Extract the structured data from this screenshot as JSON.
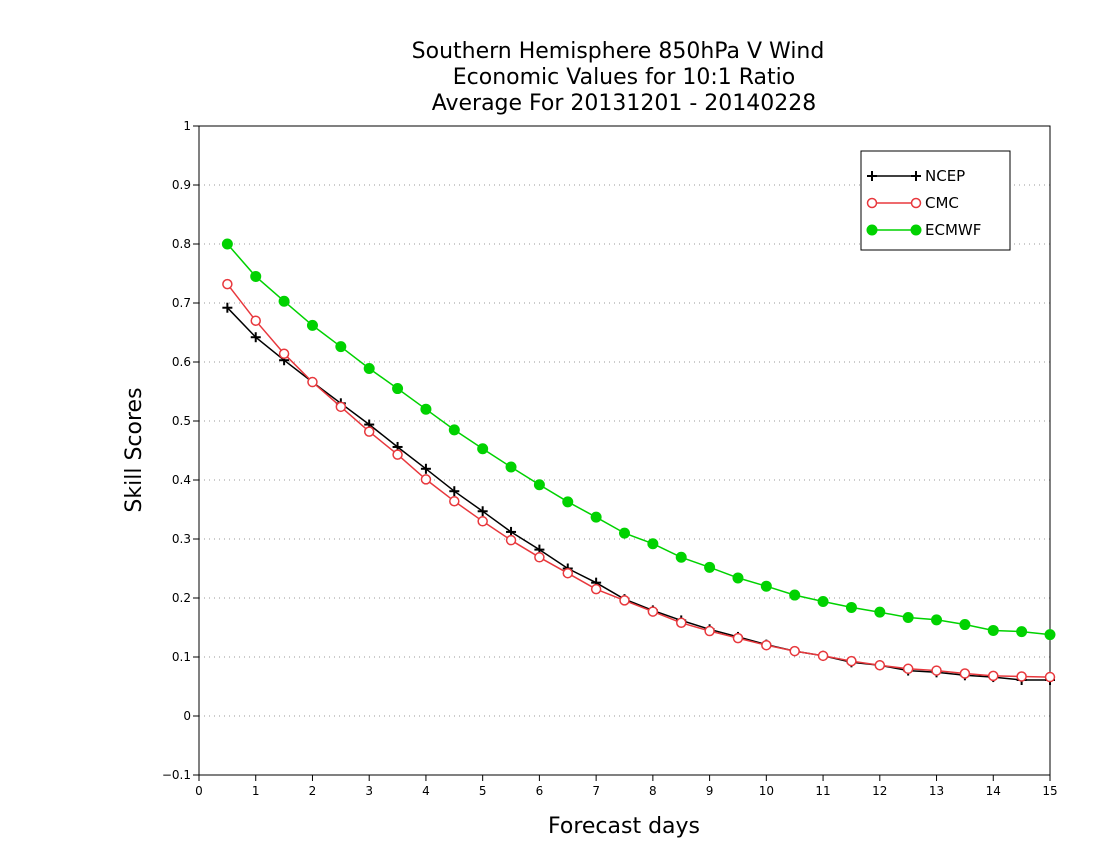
{
  "chart_data": {
    "type": "line",
    "title": [
      "Southern Hemisphere 850hPa V Wind",
      "Economic Values for 10:1 Ratio",
      "Average For 20131201 - 20140228"
    ],
    "xlabel": "Forecast days",
    "ylabel": "Skill Scores",
    "xlim": [
      0,
      15
    ],
    "ylim": [
      -0.1,
      1
    ],
    "xticks": [
      "0",
      "1",
      "2",
      "3",
      "4",
      "5",
      "6",
      "7",
      "8",
      "9",
      "10",
      "11",
      "12",
      "13",
      "14",
      "15"
    ],
    "yticks": [
      "-0.1",
      "0",
      "0.1",
      "0.2",
      "0.3",
      "0.4",
      "0.5",
      "0.6",
      "0.7",
      "0.8",
      "0.9",
      "1"
    ],
    "grid": true,
    "legend_position": "top-right",
    "x": [
      0.5,
      1,
      1.5,
      2,
      2.5,
      3,
      3.5,
      4,
      4.5,
      5,
      5.5,
      6,
      6.5,
      7,
      7.5,
      8,
      8.5,
      9,
      9.5,
      10,
      10.5,
      11,
      11.5,
      12,
      12.5,
      13,
      13.5,
      14,
      14.5,
      15
    ],
    "series": [
      {
        "name": "NCEP",
        "color": "#000000",
        "marker": "plus",
        "values": [
          0.692,
          0.642,
          0.603,
          0.566,
          0.53,
          0.494,
          0.456,
          0.419,
          0.381,
          0.347,
          0.312,
          0.282,
          0.25,
          0.226,
          0.198,
          0.179,
          0.162,
          0.147,
          0.134,
          0.121,
          0.11,
          0.102,
          0.091,
          0.086,
          0.077,
          0.074,
          0.069,
          0.066,
          0.061,
          0.061
        ]
      },
      {
        "name": "CMC",
        "color": "#e8383d",
        "marker": "open-circle",
        "values": [
          0.732,
          0.67,
          0.614,
          0.566,
          0.524,
          0.482,
          0.443,
          0.401,
          0.364,
          0.33,
          0.298,
          0.269,
          0.242,
          0.215,
          0.196,
          0.177,
          0.158,
          0.144,
          0.132,
          0.12,
          0.11,
          0.102,
          0.093,
          0.086,
          0.08,
          0.077,
          0.072,
          0.068,
          0.067,
          0.066
        ]
      },
      {
        "name": "ECMWF",
        "color": "#00d200",
        "marker": "filled-circle",
        "values": [
          0.8,
          0.745,
          0.703,
          0.662,
          0.626,
          0.589,
          0.555,
          0.52,
          0.485,
          0.453,
          0.422,
          0.392,
          0.363,
          0.337,
          0.31,
          0.292,
          0.269,
          0.252,
          0.234,
          0.22,
          0.205,
          0.194,
          0.184,
          0.176,
          0.167,
          0.163,
          0.155,
          0.145,
          0.143,
          0.138
        ]
      }
    ]
  }
}
